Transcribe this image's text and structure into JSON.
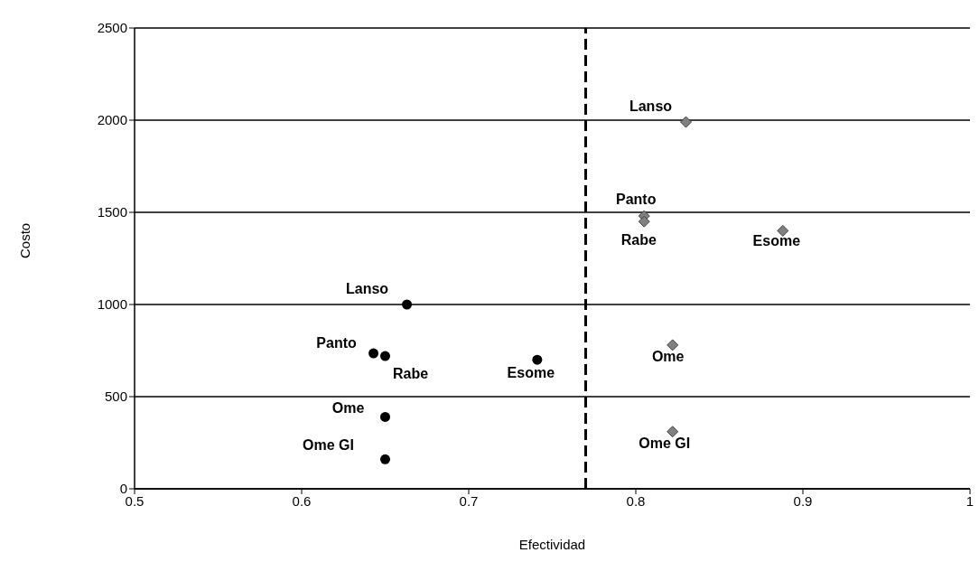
{
  "chart_data": {
    "type": "scatter",
    "xlabel": "Efectividad",
    "ylabel": "Costo",
    "xlim": [
      0.5,
      1
    ],
    "xticks": [
      0.5,
      0.6,
      0.7,
      0.8,
      0.9,
      1
    ],
    "ylim": [
      0,
      2500
    ],
    "yticks": [
      0,
      500,
      1000,
      1500,
      2000,
      2500
    ],
    "grid": "y",
    "legend": false,
    "series": [
      {
        "color": "#000000",
        "marker": "circle",
        "x": [
          0.663,
          0.643,
          0.65,
          0.741,
          0.65,
          0.65
        ],
        "values": [
          1000,
          735,
          720,
          700,
          390,
          160
        ]
      },
      {
        "color": "#808080",
        "marker": "diamond",
        "x": [
          0.83,
          0.805,
          0.805,
          0.888,
          0.822,
          0.822
        ],
        "values": [
          1990,
          1480,
          1450,
          1400,
          780,
          310
        ]
      }
    ],
    "ref_lines": [
      {
        "axis": "x",
        "value": 0.77,
        "line_style": "dashed",
        "color": "#000000"
      }
    ],
    "annotations": [
      {
        "text": "Lanso",
        "x": 0.663,
        "y": 1000
      },
      {
        "text": "Panto",
        "x": 0.643,
        "y": 735
      },
      {
        "text": "Rabe",
        "x": 0.65,
        "y": 720
      },
      {
        "text": "Esome",
        "x": 0.741,
        "y": 700
      },
      {
        "text": "Ome",
        "x": 0.65,
        "y": 390
      },
      {
        "text": "Ome GI",
        "x": 0.65,
        "y": 160
      },
      {
        "text": "Lanso",
        "x": 0.83,
        "y": 1990
      },
      {
        "text": "Panto",
        "x": 0.805,
        "y": 1480
      },
      {
        "text": "Rabe",
        "x": 0.805,
        "y": 1450
      },
      {
        "text": "Esome",
        "x": 0.888,
        "y": 1400
      },
      {
        "text": "Ome",
        "x": 0.822,
        "y": 780
      },
      {
        "text": "Ome GI",
        "x": 0.822,
        "y": 310
      }
    ]
  }
}
